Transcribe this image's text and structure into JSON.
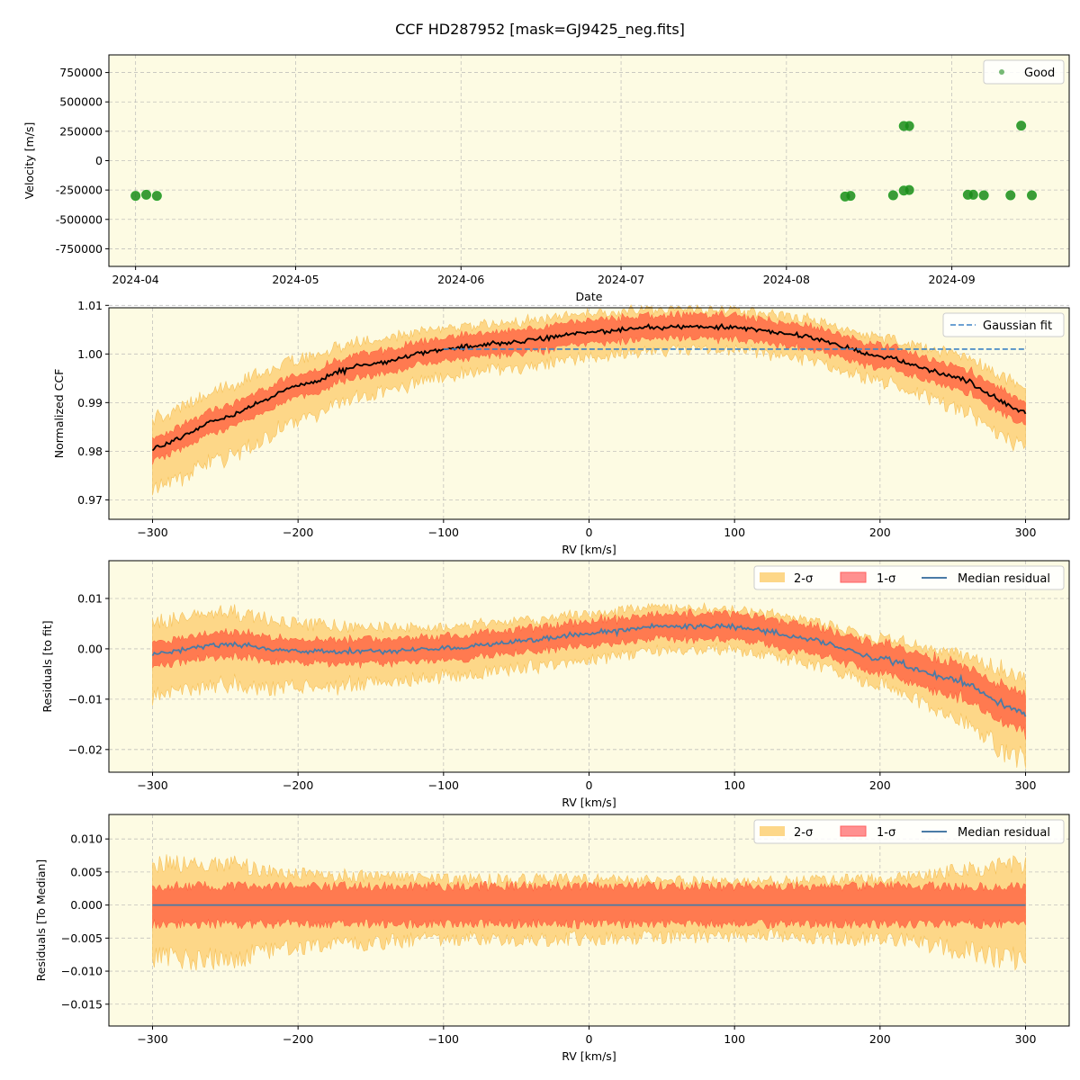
{
  "figure": {
    "title": "CCF HD287952 [mask=GJ9425_neg.fits]",
    "background": "#fdfbe3"
  },
  "colors": {
    "good": "#1a8a1a",
    "ccf": "#000000",
    "fit": "#3b82c4",
    "sigma2": "#fdd788",
    "sigma1": "#ff7a50",
    "sigma1_legend": "#ff9090",
    "median": "#4a7ba6",
    "panel_bg": "#fdfbe3"
  },
  "chart_data": [
    {
      "type": "scatter",
      "xlabel": "Date",
      "ylabel": "Velocity [m/s]",
      "ylim": [
        -900000,
        900000
      ],
      "xlim": [
        "2024-03-27",
        "2024-09-23"
      ],
      "x_ticks": [
        "2024-04",
        "2024-05",
        "2024-06",
        "2024-07",
        "2024-08",
        "2024-09"
      ],
      "x_tick_dates": [
        "2024-04-01",
        "2024-05-01",
        "2024-06-01",
        "2024-07-01",
        "2024-08-01",
        "2024-09-01"
      ],
      "y_ticks": [
        750000,
        500000,
        250000,
        0,
        -250000,
        -500000,
        -750000
      ],
      "legend": [
        {
          "label": "Good",
          "marker": "dot"
        }
      ],
      "legend_position": "top-right",
      "grid": true,
      "series": [
        {
          "name": "Good",
          "points": [
            {
              "x": "2024-04-01",
              "y": -300000
            },
            {
              "x": "2024-04-03",
              "y": -290000
            },
            {
              "x": "2024-04-05",
              "y": -300000
            },
            {
              "x": "2024-08-12",
              "y": -305000
            },
            {
              "x": "2024-08-13",
              "y": -300000
            },
            {
              "x": "2024-08-21",
              "y": -295000
            },
            {
              "x": "2024-08-23",
              "y": -255000
            },
            {
              "x": "2024-08-24",
              "y": -250000
            },
            {
              "x": "2024-08-23",
              "y": 295000
            },
            {
              "x": "2024-08-24",
              "y": 295000
            },
            {
              "x": "2024-09-04",
              "y": -290000
            },
            {
              "x": "2024-09-05",
              "y": -290000
            },
            {
              "x": "2024-09-07",
              "y": -295000
            },
            {
              "x": "2024-09-12",
              "y": -295000
            },
            {
              "x": "2024-09-14",
              "y": 298000
            },
            {
              "x": "2024-09-16",
              "y": -295000
            }
          ]
        }
      ]
    },
    {
      "type": "line",
      "xlabel": "RV [km/s]",
      "ylabel": "Normalized CCF",
      "xlim": [
        -330,
        330
      ],
      "ylim": [
        0.966,
        1.0095
      ],
      "x_ticks": [
        -300,
        -200,
        -100,
        0,
        100,
        200,
        300
      ],
      "x_tick_labels": [
        "−300",
        "−200",
        "−100",
        "0",
        "100",
        "200",
        "300"
      ],
      "y_ticks": [
        0.97,
        0.98,
        0.99,
        1.0,
        1.01
      ],
      "y_tick_labels": [
        "0.97",
        "0.98",
        "0.99",
        "1.00",
        "1.01"
      ],
      "legend": [
        {
          "label": "Gaussian fit",
          "style": "dashed"
        }
      ],
      "legend_position": "top-right",
      "grid": true,
      "rv_range": [
        -300,
        300
      ],
      "trend_knots": [
        [
          -300,
          0.9805
        ],
        [
          -250,
          0.987
        ],
        [
          -200,
          0.9935
        ],
        [
          -150,
          0.998
        ],
        [
          -100,
          1.001
        ],
        [
          -50,
          1.0025
        ],
        [
          0,
          1.0045
        ],
        [
          50,
          1.0055
        ],
        [
          100,
          1.0055
        ],
        [
          150,
          1.0035
        ],
        [
          200,
          0.9995
        ],
        [
          250,
          0.9955
        ],
        [
          300,
          0.988
        ]
      ],
      "gaussian_fit_level": 1.001,
      "gaussian_fit_range": [
        -100,
        300
      ],
      "sigma1_halfwidth": 0.0025,
      "sigma2_halfwidth_knots": [
        [
          -300,
          0.008
        ],
        [
          -250,
          0.008
        ],
        [
          -200,
          0.007
        ],
        [
          -100,
          0.0055
        ],
        [
          0,
          0.005
        ],
        [
          100,
          0.0045
        ],
        [
          200,
          0.005
        ],
        [
          300,
          0.007
        ]
      ]
    },
    {
      "type": "line",
      "xlabel": "RV [km/s]",
      "ylabel": "Residuals [to fit]",
      "xlim": [
        -330,
        330
      ],
      "ylim": [
        -0.0245,
        0.0175
      ],
      "x_ticks": [
        -300,
        -200,
        -100,
        0,
        100,
        200,
        300
      ],
      "x_tick_labels": [
        "−300",
        "−200",
        "−100",
        "0",
        "100",
        "200",
        "300"
      ],
      "y_ticks": [
        0.01,
        0.0,
        -0.01,
        -0.02
      ],
      "y_tick_labels": [
        "0.01",
        "0.00",
        "−0.01",
        "−0.02"
      ],
      "legend": [
        {
          "label": "2-σ",
          "style": "patch2"
        },
        {
          "label": "1-σ",
          "style": "patch1"
        },
        {
          "label": "Median residual",
          "style": "line"
        }
      ],
      "legend_position": "top-right",
      "grid": true,
      "rv_range": [
        -300,
        300
      ],
      "trend_knots": [
        [
          -300,
          -0.001
        ],
        [
          -250,
          0.001
        ],
        [
          -200,
          -0.0005
        ],
        [
          -150,
          -0.0005
        ],
        [
          -100,
          0.0
        ],
        [
          -50,
          0.0015
        ],
        [
          0,
          0.003
        ],
        [
          50,
          0.0045
        ],
        [
          100,
          0.0045
        ],
        [
          150,
          0.002
        ],
        [
          200,
          -0.002
        ],
        [
          250,
          -0.006
        ],
        [
          300,
          -0.013
        ]
      ],
      "sigma1_halfwidth_knots": [
        [
          -300,
          0.0025
        ],
        [
          0,
          0.0025
        ],
        [
          200,
          0.003
        ],
        [
          300,
          0.004
        ]
      ],
      "sigma2_halfwidth_knots": [
        [
          -300,
          0.008
        ],
        [
          -250,
          0.008
        ],
        [
          -200,
          0.007
        ],
        [
          -100,
          0.0055
        ],
        [
          0,
          0.005
        ],
        [
          100,
          0.0045
        ],
        [
          200,
          0.005
        ],
        [
          300,
          0.009
        ]
      ]
    },
    {
      "type": "line",
      "xlabel": "RV [km/s]",
      "ylabel": "Residuals [To Median]",
      "xlim": [
        -330,
        330
      ],
      "ylim": [
        -0.0183,
        0.0137
      ],
      "x_ticks": [
        -300,
        -200,
        -100,
        0,
        100,
        200,
        300
      ],
      "x_tick_labels": [
        "−300",
        "−200",
        "−100",
        "0",
        "100",
        "200",
        "300"
      ],
      "y_ticks": [
        0.01,
        0.005,
        0.0,
        -0.005,
        -0.01,
        -0.015
      ],
      "y_tick_labels": [
        "0.010",
        "0.005",
        "0.000",
        "−0.005",
        "−0.010",
        "−0.015"
      ],
      "legend": [
        {
          "label": "2-σ",
          "style": "patch2"
        },
        {
          "label": "1-σ",
          "style": "patch1"
        },
        {
          "label": "Median residual",
          "style": "line"
        }
      ],
      "legend_position": "top-right",
      "grid": true,
      "rv_range": [
        -300,
        300
      ],
      "trend_knots": [
        [
          -300,
          0.0
        ],
        [
          300,
          0.0
        ]
      ],
      "sigma1_halfwidth": 0.003,
      "sigma2_halfwidth_knots": [
        [
          -300,
          0.008
        ],
        [
          -250,
          0.008
        ],
        [
          -200,
          0.006
        ],
        [
          -100,
          0.005
        ],
        [
          0,
          0.005
        ],
        [
          100,
          0.0045
        ],
        [
          200,
          0.005
        ],
        [
          300,
          0.008
        ]
      ]
    }
  ]
}
